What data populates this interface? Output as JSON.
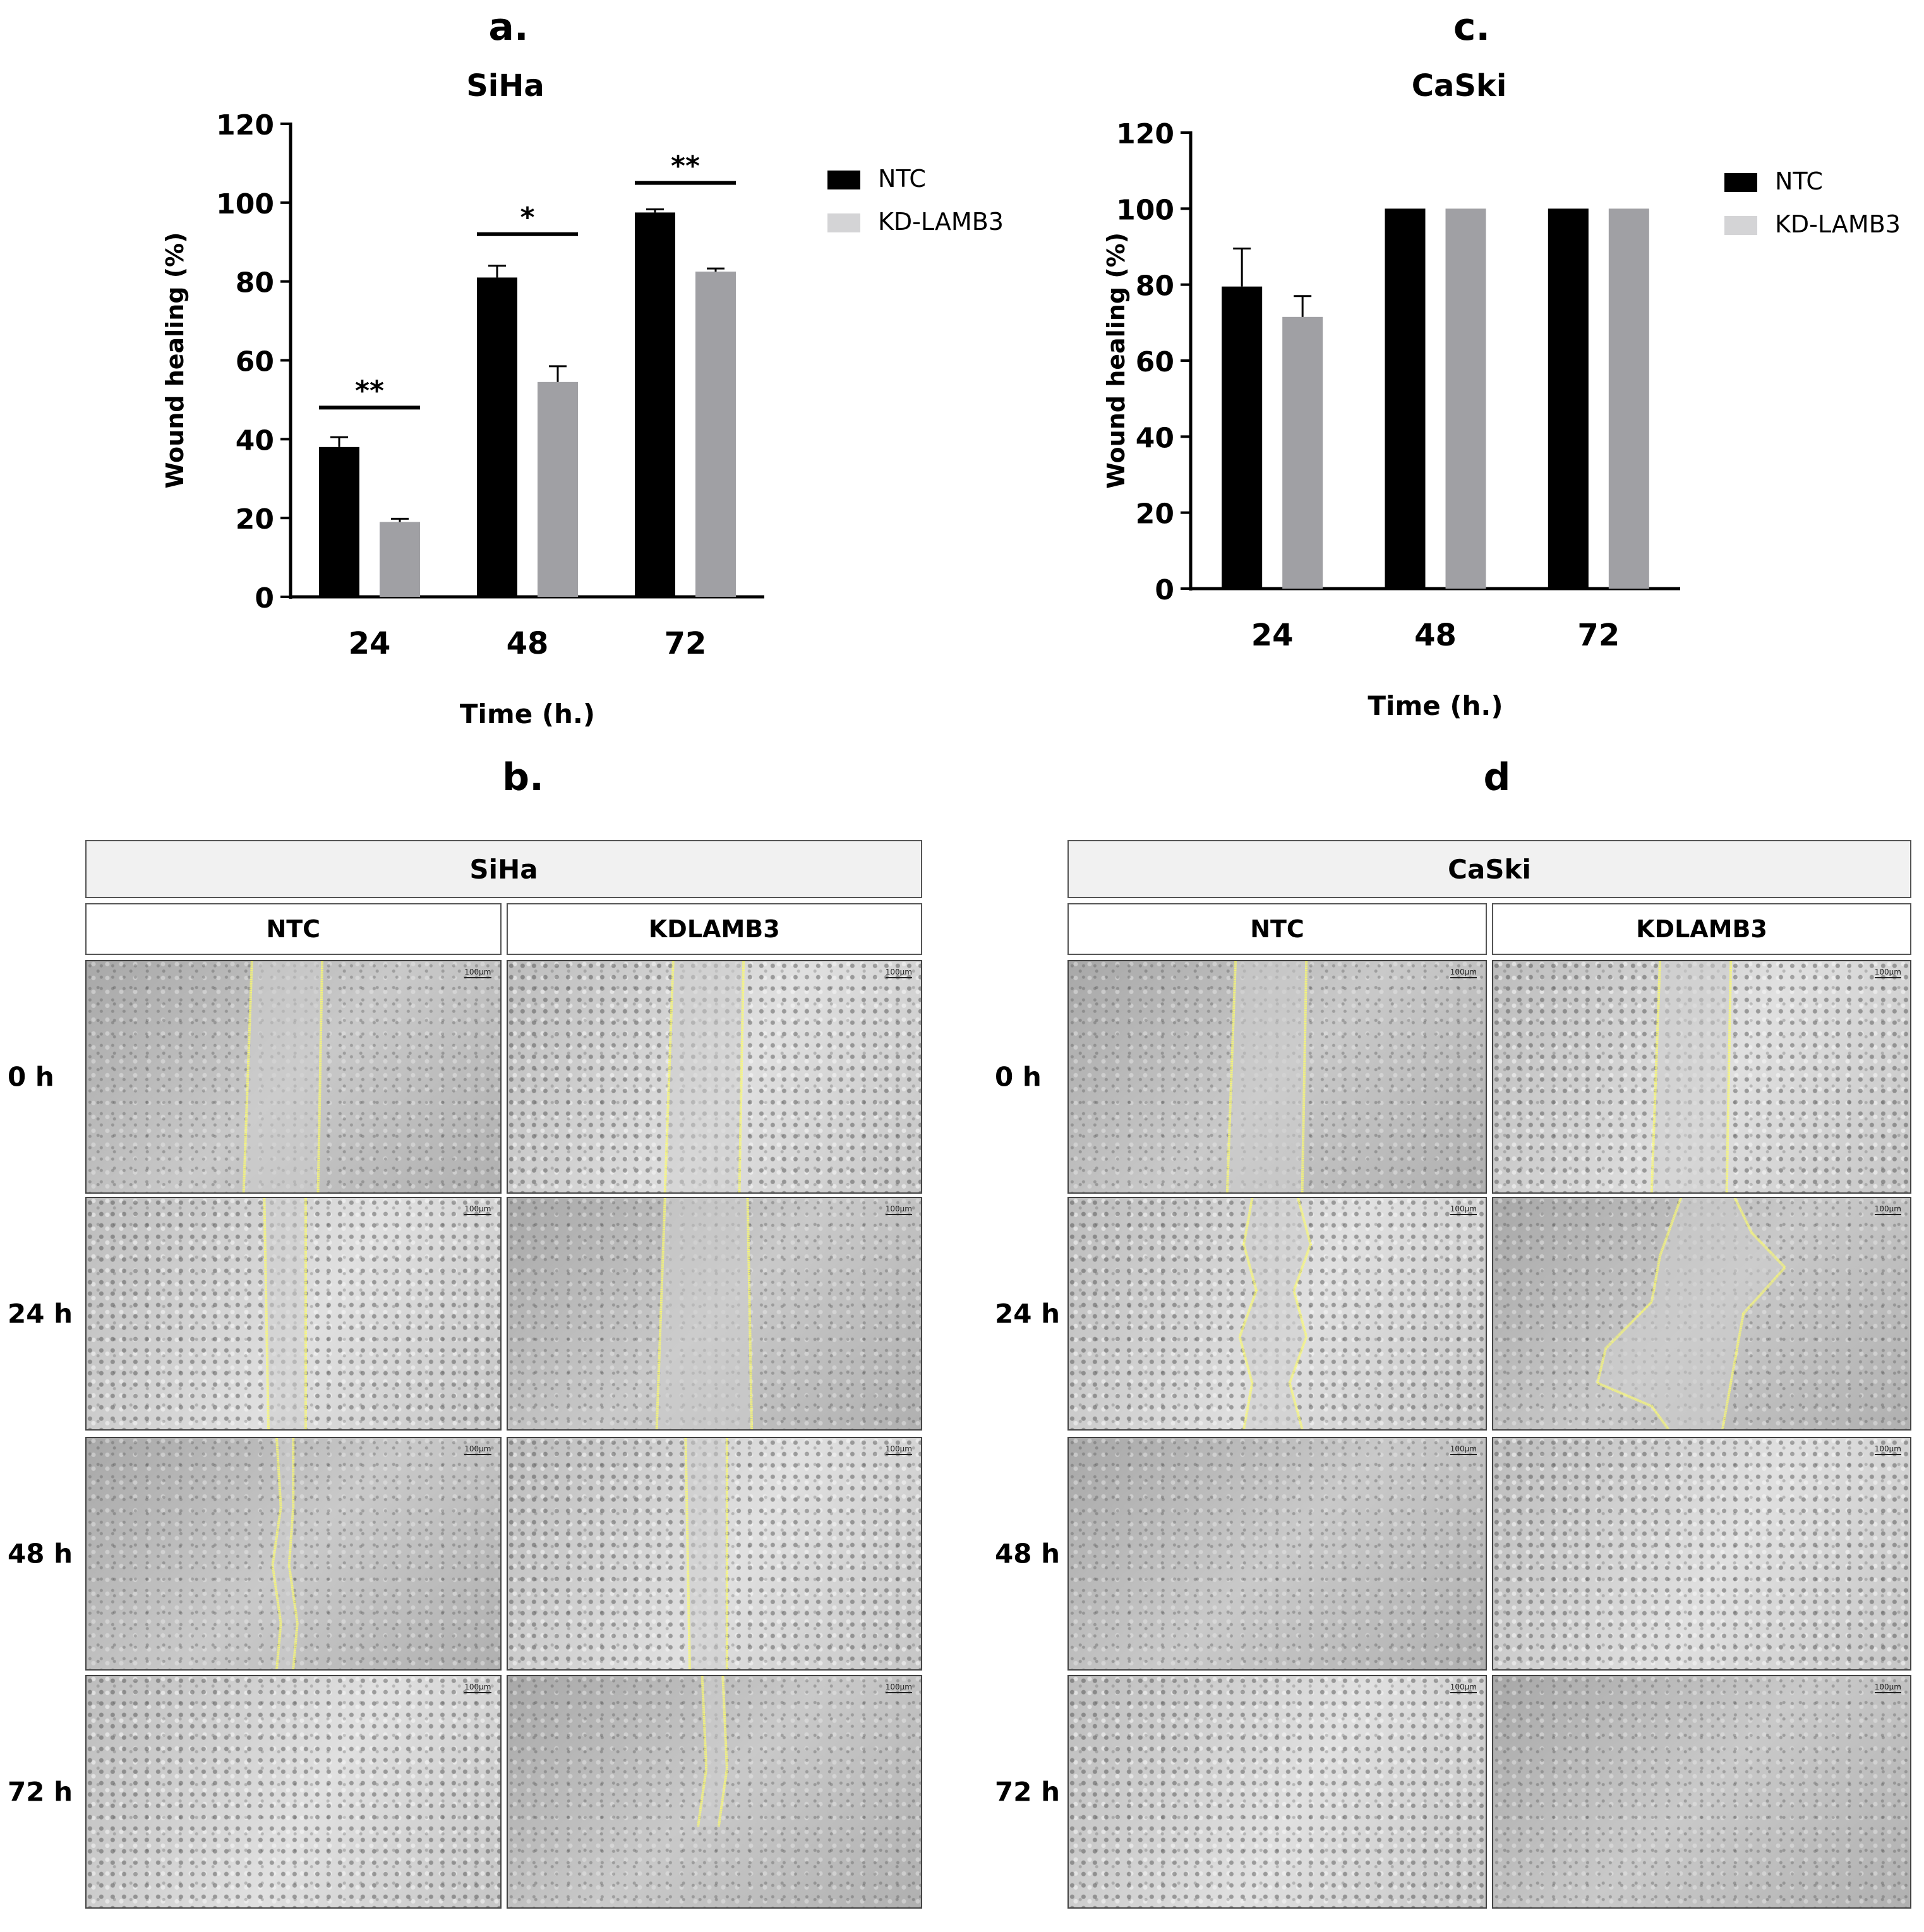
{
  "panels": {
    "a": "a.",
    "b": "b.",
    "c": "c.",
    "d": "d"
  },
  "colors": {
    "ntc": "#000000",
    "kd": "#a0a0a4",
    "outline": "#ffff66"
  },
  "chart_data": [
    {
      "type": "bar",
      "title": "SiHa",
      "xlabel": "Time (h.)",
      "ylabel": "Wound healing (%)",
      "categories": [
        "24",
        "48",
        "72"
      ],
      "ylim": [
        0,
        120
      ],
      "yticks": [
        0,
        20,
        40,
        60,
        80,
        100,
        120
      ],
      "legend_position": "right",
      "series": [
        {
          "name": "NTC",
          "values": [
            38,
            81,
            97.5
          ],
          "errors": [
            2.5,
            3,
            0.8
          ]
        },
        {
          "name": "KD-LAMB3",
          "values": [
            19,
            54.5,
            82.5
          ],
          "errors": [
            0.8,
            4,
            0.8
          ]
        }
      ],
      "significance": [
        "**",
        "*",
        "**"
      ],
      "significance_levels": [
        48,
        92,
        105
      ]
    },
    {
      "type": "bar",
      "title": "CaSki",
      "xlabel": "Time (h.)",
      "ylabel": "Wound healing (%)",
      "categories": [
        "24",
        "48",
        "72"
      ],
      "ylim": [
        0,
        120
      ],
      "yticks": [
        0,
        20,
        40,
        60,
        80,
        100,
        120
      ],
      "legend_position": "right",
      "series": [
        {
          "name": "NTC",
          "values": [
            79.5,
            100,
            100
          ],
          "errors": [
            10,
            0,
            0
          ]
        },
        {
          "name": "KD-LAMB3",
          "values": [
            71.5,
            100,
            100
          ],
          "errors": [
            5.5,
            0,
            0
          ]
        }
      ],
      "significance": [],
      "significance_levels": []
    }
  ],
  "image_grids": [
    {
      "title": "SiHa",
      "columns": [
        "NTC",
        "KDLAMB3"
      ],
      "rows": [
        "0 h",
        "24 h",
        "48 h",
        "72 h"
      ]
    },
    {
      "title": "CaSki",
      "columns": [
        "NTC",
        "KDLAMB3"
      ],
      "rows": [
        "0 h",
        "24 h",
        "48 h",
        "72 h"
      ]
    }
  ],
  "scale_bar": "100µm"
}
